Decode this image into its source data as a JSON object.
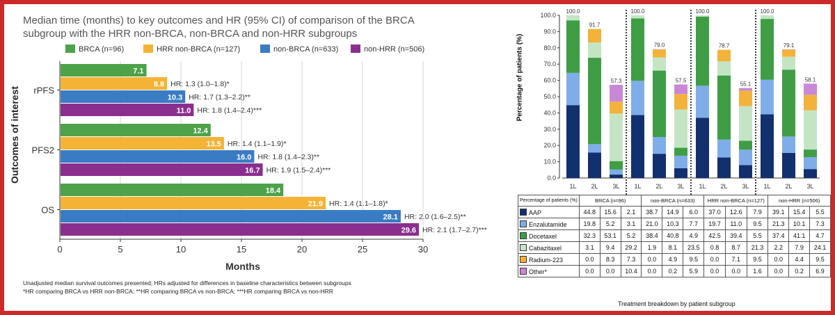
{
  "left_chart": {
    "title_line1": "Median time (months) to key outcomes and HR (95% CI) of comparison of the BRCA",
    "title_line2": "subgroup with the HRR non-BRCA, non-BRCA and non-HRR subgroups",
    "ylabel": "Outcomes of interest",
    "xlabel": "Months",
    "footnote1": "Unadjusted median survival outcomes presented; HRs adjusted for differences in baseline characteristics between subgroups",
    "footnote2": "*HR comparing BRCA vs HRR non-BRCA; **HR comparing BRCA vs non-BRCA; ***HR comparing BRCA vs non-HRR"
  },
  "right_chart": {
    "ylabel": "Percentage of patients (%)",
    "table_header": "Percentage of patients (%)",
    "caption": "Treatment breakdown by patient subgroup"
  },
  "colors": {
    "brca": "#4ea24a",
    "hrr_non_brca": "#f5b335",
    "non_brca": "#3a7cc4",
    "non_hrr": "#8b2f8f",
    "aap": "#13306e",
    "enzalutamide": "#7fadea",
    "docetaxel": "#3f9d46",
    "cabazitaxel": "#c4e5c4",
    "radium223": "#f3b23a",
    "other": "#c988d6",
    "frame": "#cc2a2a"
  },
  "chart_data": [
    {
      "type": "bar",
      "orientation": "horizontal",
      "title": "Median time (months) to key outcomes and HR (95% CI) of comparison of the BRCA subgroup with the HRR non-BRCA, non-BRCA and non-HRR subgroups",
      "xlabel": "Months",
      "ylabel": "Outcomes of interest",
      "xlim": [
        0,
        30
      ],
      "xticks": [
        "0",
        "5",
        "10",
        "15",
        "20",
        "25",
        "30"
      ],
      "categories": [
        "rPFS",
        "PFS2",
        "OS"
      ],
      "legend_position": "top",
      "series": [
        {
          "name": "BRCA (n=96)",
          "values": [
            7.1,
            12.4,
            18.4
          ],
          "labels": [
            "7.1",
            "12.4",
            "18.4"
          ],
          "hr": [
            "",
            "",
            ""
          ]
        },
        {
          "name": "HRR non-BRCA (n=127)",
          "values": [
            8.8,
            13.5,
            21.9
          ],
          "labels": [
            "8.8",
            "13.5",
            "21.9"
          ],
          "hr": [
            "HR: 1.3 (1.0–1.8)*",
            "HR: 1.4 (1.1–1.9)*",
            "HR: 1.4 (1.1–1.8)*"
          ]
        },
        {
          "name": "non-BRCA (n=633)",
          "values": [
            10.3,
            16.0,
            28.1
          ],
          "labels": [
            "10.3",
            "16.0",
            "28.1"
          ],
          "hr": [
            "HR: 1.7 (1.3–2.2)**",
            "HR: 1.8 (1.4–2.3)**",
            "HR: 2.0 (1.6–2.5)**"
          ]
        },
        {
          "name": "non-HRR (n=506)",
          "values": [
            11.0,
            16.7,
            29.6
          ],
          "labels": [
            "11.0",
            "16.7",
            "29.6"
          ],
          "hr": [
            "HR: 1.8 (1.4–2.4)***",
            "HR: 1.9 (1.5–2.4)***",
            "HR: 2.1 (1.7–2.7)***"
          ]
        }
      ]
    },
    {
      "type": "bar",
      "stacked": true,
      "ylabel": "Percentage of patients (%)",
      "xlabel": "Treatment breakdown by patient subgroup",
      "ylim": [
        0,
        100
      ],
      "yticks": [
        "0.0",
        "10.0",
        "20.0",
        "30.0",
        "40.0",
        "50.0",
        "60.0",
        "70.0",
        "80.0",
        "90.0",
        "100.0"
      ],
      "groups": [
        "BRCA (n=96)",
        "non-BRCA (n=633)",
        "HRR non-BRCA (n=127)",
        "non-HRR (n=506)"
      ],
      "lines": [
        "1L",
        "2L",
        "3L"
      ],
      "totals": [
        [
          "100.0",
          "91.7",
          "57.3"
        ],
        [
          "100.0",
          "79.0",
          "57.5"
        ],
        [
          "100.0",
          "78.7",
          "55.1"
        ],
        [
          "100.0",
          "79.1",
          "58.1"
        ]
      ],
      "series": [
        {
          "name": "AAP",
          "color": "#13306e",
          "values": [
            [
              44.8,
              15.6,
              2.1
            ],
            [
              38.7,
              14.9,
              6.0
            ],
            [
              37.0,
              12.6,
              7.9
            ],
            [
              39.1,
              15.4,
              5.5
            ]
          ],
          "labels": [
            [
              "44.8",
              "15.6",
              "2.1"
            ],
            [
              "38.7",
              "14.9",
              "6.0"
            ],
            [
              "37.0",
              "12.6",
              "7.9"
            ],
            [
              "39.1",
              "15.4",
              "5.5"
            ]
          ]
        },
        {
          "name": "Enzalutamide",
          "color": "#7fadea",
          "values": [
            [
              19.8,
              5.2,
              3.1
            ],
            [
              21.0,
              10.3,
              7.7
            ],
            [
              19.7,
              11.0,
              9.5
            ],
            [
              21.3,
              10.1,
              7.3
            ]
          ],
          "labels": [
            [
              "19.8",
              "5.2",
              "3.1"
            ],
            [
              "21.0",
              "10.3",
              "7.7"
            ],
            [
              "19.7",
              "11.0",
              "9.5"
            ],
            [
              "21.3",
              "10.1",
              "7.3"
            ]
          ]
        },
        {
          "name": "Docetaxel",
          "color": "#3f9d46",
          "values": [
            [
              32.3,
              53.1,
              5.2
            ],
            [
              38.4,
              40.8,
              4.9
            ],
            [
              42.5,
              39.4,
              5.5
            ],
            [
              37.4,
              41.1,
              4.7
            ]
          ],
          "labels": [
            [
              "32.3",
              "53.1",
              "5.2"
            ],
            [
              "38.4",
              "40.8",
              "4.9"
            ],
            [
              "42.5",
              "39.4",
              "5.5"
            ],
            [
              "37.4",
              "41.1",
              "4.7"
            ]
          ]
        },
        {
          "name": "Cabazitaxel",
          "color": "#c4e5c4",
          "values": [
            [
              3.1,
              9.4,
              29.2
            ],
            [
              1.9,
              8.1,
              23.5
            ],
            [
              0.8,
              8.7,
              21.3
            ],
            [
              2.2,
              7.9,
              24.1
            ]
          ],
          "labels": [
            [
              "3.1",
              "9.4",
              "29.2"
            ],
            [
              "1.9",
              "8.1",
              "23.5"
            ],
            [
              "0.8",
              "8.7",
              "21.3"
            ],
            [
              "2.2",
              "7.9",
              "24.1"
            ]
          ]
        },
        {
          "name": "Radium-223",
          "color": "#f3b23a",
          "values": [
            [
              0.0,
              8.3,
              7.3
            ],
            [
              0.0,
              4.9,
              9.5
            ],
            [
              0.0,
              7.1,
              9.5
            ],
            [
              0.0,
              4.4,
              9.5
            ]
          ],
          "labels": [
            [
              "0.0",
              "8.3",
              "7.3"
            ],
            [
              "0.0",
              "4.9",
              "9.5"
            ],
            [
              "0.0",
              "7.1",
              "9.5"
            ],
            [
              "0.0",
              "4.4",
              "9.5"
            ]
          ]
        },
        {
          "name": "Other*",
          "color": "#c988d6",
          "values": [
            [
              0.0,
              0.0,
              10.4
            ],
            [
              0.0,
              0.2,
              5.9
            ],
            [
              0.0,
              0.0,
              1.6
            ],
            [
              0.0,
              0.2,
              6.9
            ]
          ],
          "labels": [
            [
              "0.0",
              "0.0",
              "10.4"
            ],
            [
              "0.0",
              "0.2",
              "5.9"
            ],
            [
              "0.0",
              "0.0",
              "1.6"
            ],
            [
              "0.0",
              "0.2",
              "6.9"
            ]
          ]
        }
      ]
    }
  ]
}
